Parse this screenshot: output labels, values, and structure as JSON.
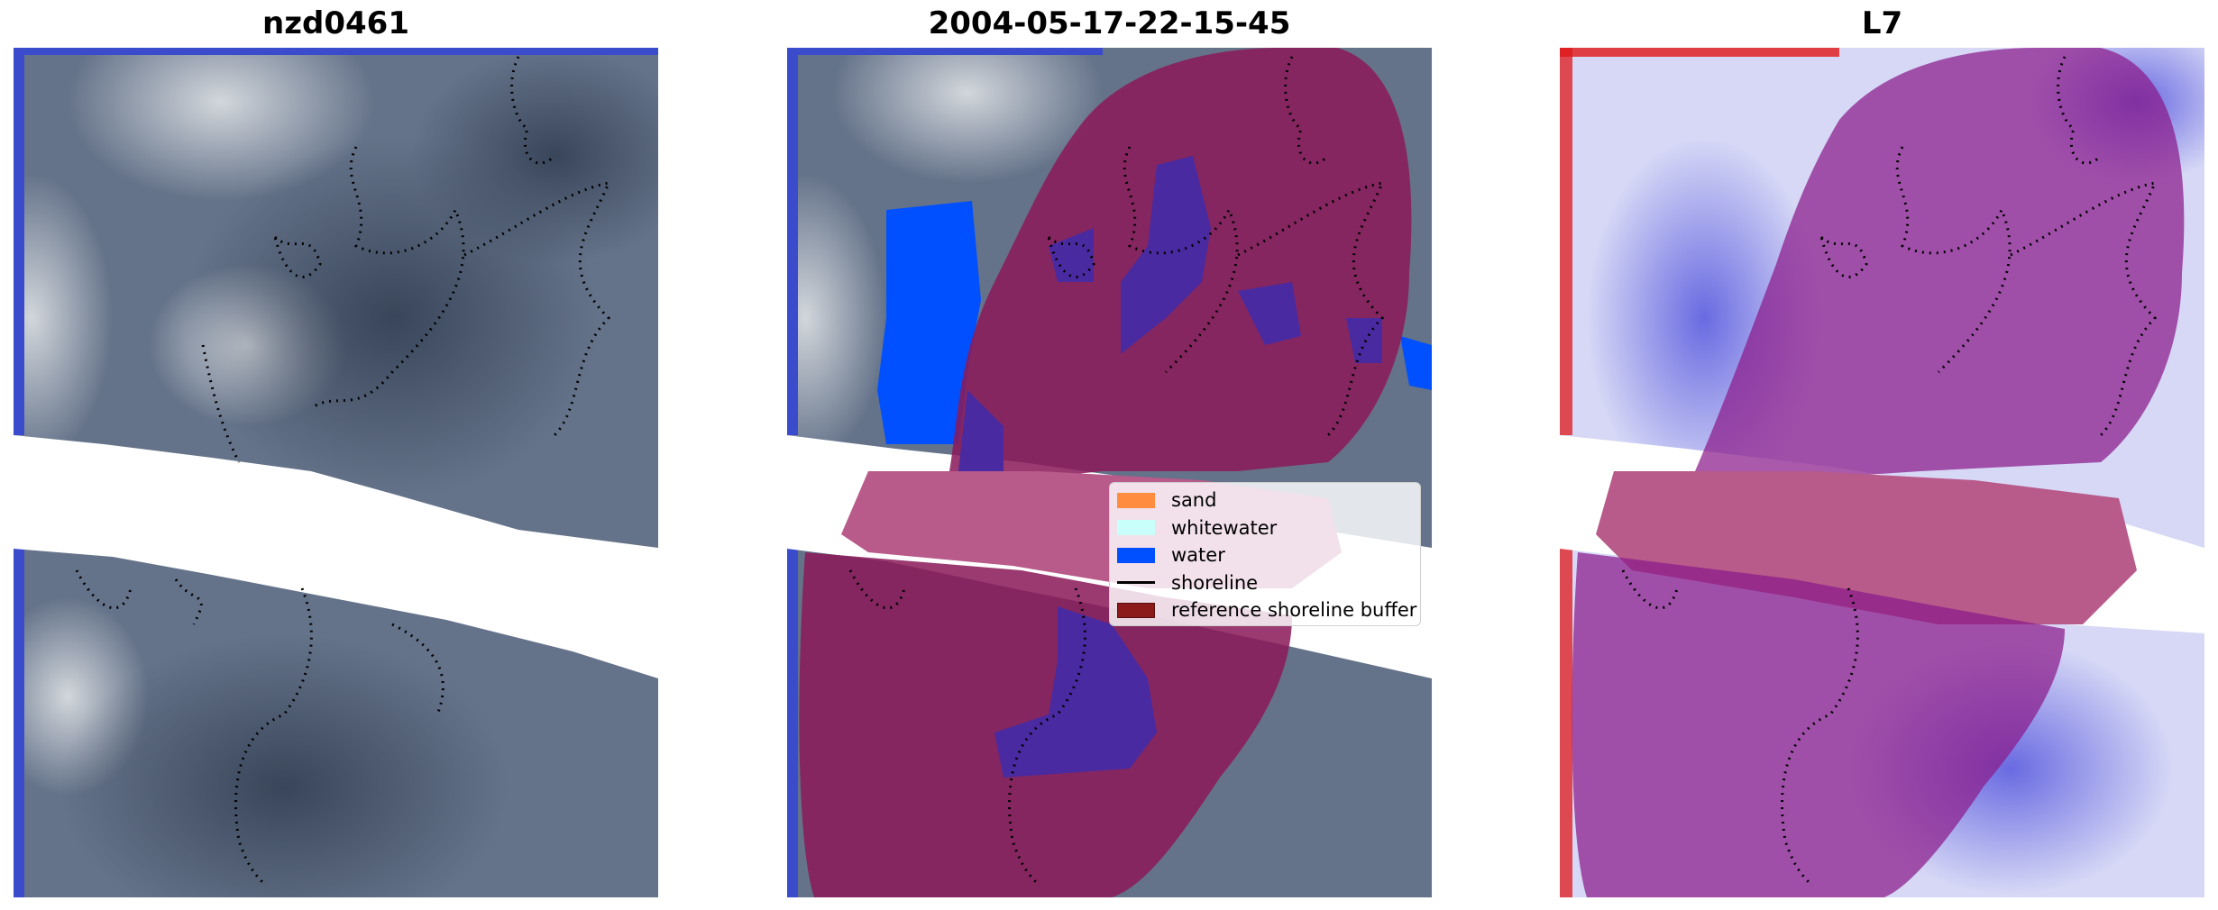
{
  "panels": [
    {
      "title": "nzd0461"
    },
    {
      "title": "2004-05-17-22-15-45"
    },
    {
      "title": "L7"
    }
  ],
  "legend": {
    "items": [
      {
        "label": "sand",
        "color": "#ff8c3f",
        "kind": "patch"
      },
      {
        "label": "whitewater",
        "color": "#c8fffa",
        "kind": "patch"
      },
      {
        "label": "water",
        "color": "#0050ff",
        "kind": "patch"
      },
      {
        "label": "shoreline",
        "color": "#000000",
        "kind": "line"
      },
      {
        "label": "reference shoreline buffer",
        "color": "#8b1a1a",
        "kind": "patch"
      }
    ]
  },
  "colors": {
    "satellite_dark": "#4a5a70",
    "satellite_light": "#b8bfc8",
    "water_class": "#0050ff",
    "buffer_overlay": "#8b1a5a",
    "index_blue": "#3b3bd8",
    "index_red": "#e01818"
  }
}
